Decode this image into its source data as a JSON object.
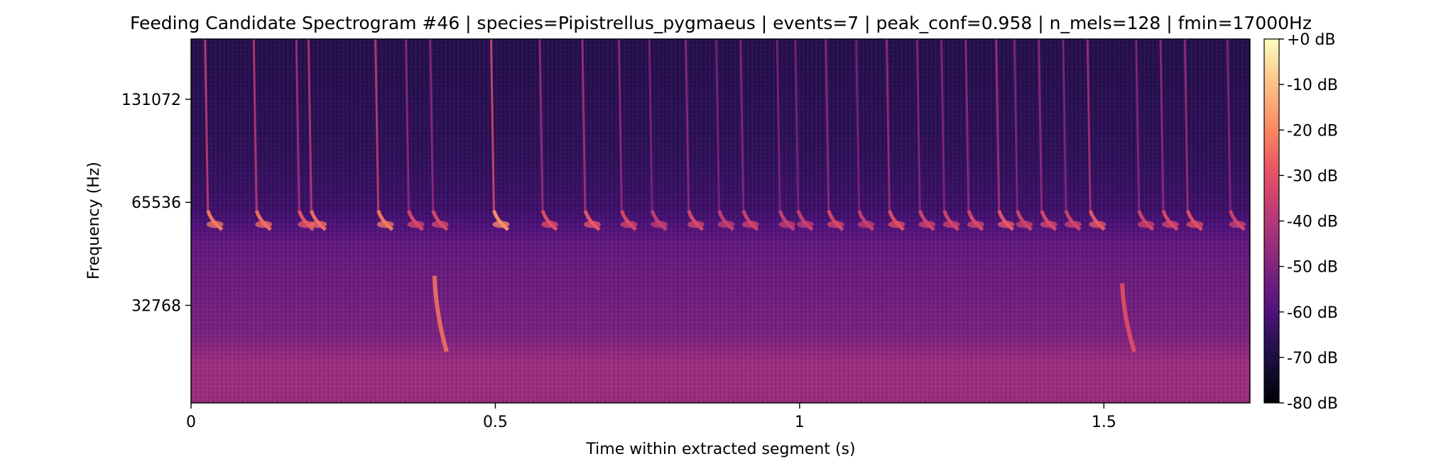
{
  "chart_data": {
    "type": "heatmap",
    "title": "Feeding Candidate Spectrogram #46 | species=Pipistrellus_pygmaeus | events=7 | peak_conf=0.958 | n_mels=128 | fmin=17000Hz",
    "xlabel": "Time within extracted segment (s)",
    "ylabel": "Frequency (Hz)",
    "x_range": [
      0,
      1.74
    ],
    "x_ticks": [
      {
        "value": 0,
        "label": "0"
      },
      {
        "value": 0.5,
        "label": "0.5"
      },
      {
        "value": 1,
        "label": "1"
      },
      {
        "value": 1.5,
        "label": "1.5"
      }
    ],
    "y_scale": "log2",
    "y_range": [
      17000,
      196608
    ],
    "y_ticks": [
      {
        "value": 32768,
        "label": "32768"
      },
      {
        "value": 65536,
        "label": "65536"
      },
      {
        "value": 131072,
        "label": "131072"
      }
    ],
    "colormap": "magma",
    "colorbar": {
      "range": [
        -80,
        0
      ],
      "ticks": [
        {
          "value": 0,
          "label": "+0 dB"
        },
        {
          "value": -10,
          "label": "-10 dB"
        },
        {
          "value": -20,
          "label": "-20 dB"
        },
        {
          "value": -30,
          "label": "-30 dB"
        },
        {
          "value": -40,
          "label": "-40 dB"
        },
        {
          "value": -50,
          "label": "-50 dB"
        },
        {
          "value": -60,
          "label": "-60 dB"
        },
        {
          "value": -70,
          "label": "-70 dB"
        },
        {
          "value": -80,
          "label": "-80 dB"
        }
      ]
    },
    "background_levels_db": [
      {
        "freq": 17000,
        "db": -45
      },
      {
        "freq": 22000,
        "db": -44
      },
      {
        "freq": 27000,
        "db": -51
      },
      {
        "freq": 40000,
        "db": -54
      },
      {
        "freq": 50000,
        "db": -56
      },
      {
        "freq": 56000,
        "db": -60
      },
      {
        "freq": 62000,
        "db": -63
      },
      {
        "freq": 90000,
        "db": -66
      },
      {
        "freq": 196608,
        "db": -68
      }
    ],
    "calls": [
      {
        "time": 0.03,
        "peak_db": -22
      },
      {
        "time": 0.11,
        "peak_db": -24
      },
      {
        "time": 0.18,
        "peak_db": -28
      },
      {
        "time": 0.2,
        "peak_db": -24
      },
      {
        "time": 0.31,
        "peak_db": -22
      },
      {
        "time": 0.36,
        "peak_db": -32
      },
      {
        "time": 0.4,
        "peak_db": -32
      },
      {
        "time": 0.5,
        "peak_db": -18
      },
      {
        "time": 0.58,
        "peak_db": -30
      },
      {
        "time": 0.65,
        "peak_db": -28
      },
      {
        "time": 0.71,
        "peak_db": -32
      },
      {
        "time": 0.76,
        "peak_db": -36
      },
      {
        "time": 0.82,
        "peak_db": -32
      },
      {
        "time": 0.87,
        "peak_db": -36
      },
      {
        "time": 0.91,
        "peak_db": -34
      },
      {
        "time": 0.97,
        "peak_db": -36
      },
      {
        "time": 1.0,
        "peak_db": -36
      },
      {
        "time": 1.05,
        "peak_db": -32
      },
      {
        "time": 1.1,
        "peak_db": -36
      },
      {
        "time": 1.15,
        "peak_db": -30
      },
      {
        "time": 1.2,
        "peak_db": -34
      },
      {
        "time": 1.24,
        "peak_db": -34
      },
      {
        "time": 1.28,
        "peak_db": -32
      },
      {
        "time": 1.33,
        "peak_db": -28
      },
      {
        "time": 1.36,
        "peak_db": -34
      },
      {
        "time": 1.4,
        "peak_db": -32
      },
      {
        "time": 1.44,
        "peak_db": -34
      },
      {
        "time": 1.48,
        "peak_db": -28
      },
      {
        "time": 1.56,
        "peak_db": -34
      },
      {
        "time": 1.6,
        "peak_db": -32
      },
      {
        "time": 1.64,
        "peak_db": -30
      },
      {
        "time": 1.71,
        "peak_db": -34
      }
    ],
    "low_sweeps": [
      {
        "time_start": 0.4,
        "time_end": 0.42,
        "freq_start": 40000,
        "freq_end": 24000,
        "peak_db": -24
      },
      {
        "time_start": 1.53,
        "time_end": 1.55,
        "freq_start": 38000,
        "freq_end": 24000,
        "peak_db": -30
      }
    ],
    "grid": false
  }
}
